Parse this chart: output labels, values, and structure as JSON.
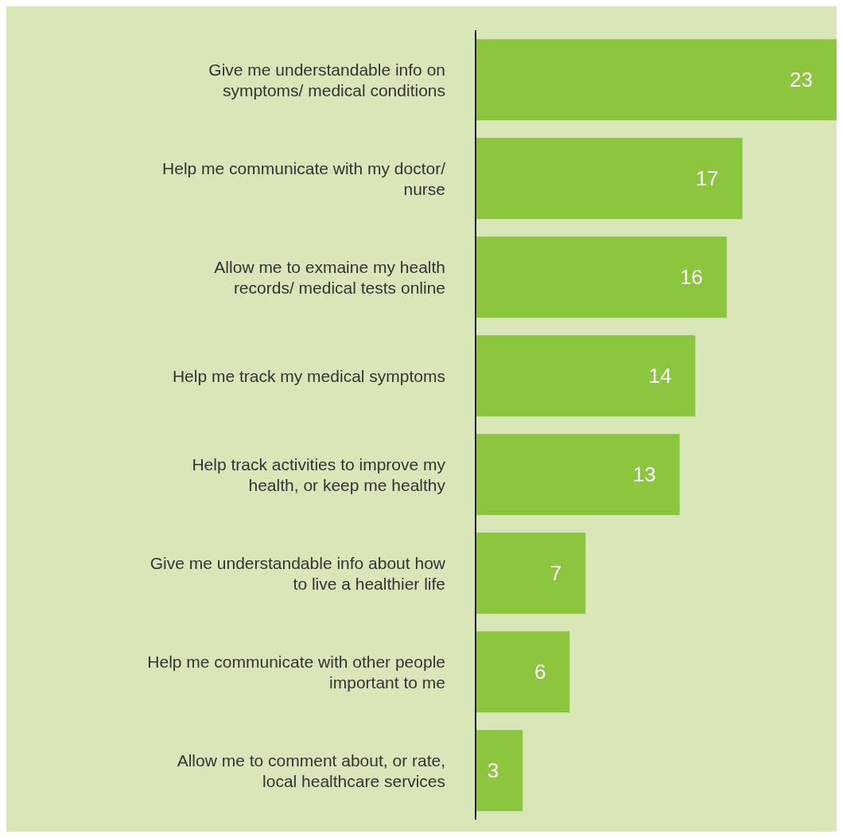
{
  "chart_data": {
    "type": "bar",
    "orientation": "horizontal",
    "categories": [
      "Give me understandable info on symptoms/ medical conditions",
      "Help me communicate with my doctor/ nurse",
      "Allow me to exmaine my health records/ medical tests online",
      "Help me track my medical symptoms",
      "Help track activities to improve my health, or keep me healthy",
      "Give me understandable info about how to live a healthier life",
      "Help me communicate with other people important to me",
      "Allow me to comment about, or rate, local healthcare services"
    ],
    "values": [
      23,
      17,
      16,
      14,
      13,
      7,
      6,
      3
    ],
    "color": "#8cc63f",
    "data_labels": true,
    "tick_labels": "y"
  }
}
